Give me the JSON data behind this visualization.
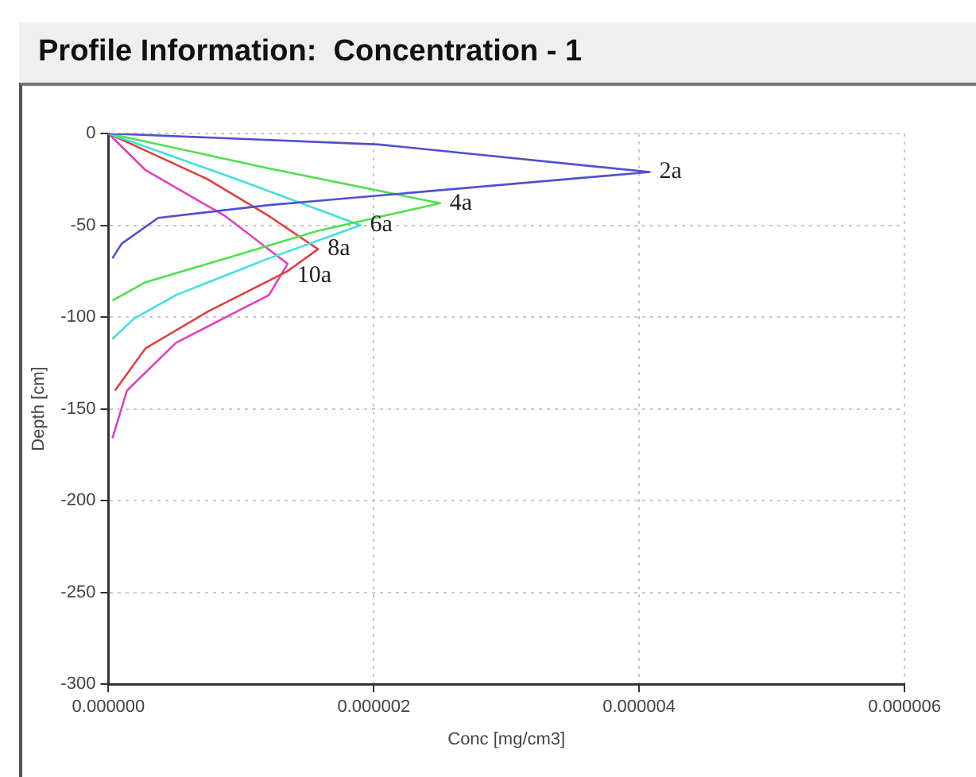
{
  "chart_data": {
    "type": "line",
    "title": "Profile Information:  Concentration - 1",
    "xlabel": "Conc [mg/cm3]",
    "ylabel": "Depth [cm]",
    "xlim": [
      0,
      6e-06
    ],
    "xticks": [
      {
        "value": 0,
        "label": "0.000000"
      },
      {
        "value": 2e-06,
        "label": "0.000002"
      },
      {
        "value": 4e-06,
        "label": "0.000004"
      },
      {
        "value": 6e-06,
        "label": "0.000006"
      }
    ],
    "ylim": [
      -300,
      0
    ],
    "yticks": [
      -300,
      -250,
      -200,
      -150,
      -100,
      -50,
      0
    ],
    "grid": true,
    "legend": false,
    "marker": "none",
    "line_style": "solid",
    "series": [
      {
        "name": "2a",
        "color": "#5050d0",
        "x": [
          0,
          2.04e-06,
          4.08e-06,
          1.21e-06,
          3.75e-07,
          1e-07,
          3e-08
        ],
        "values": [
          0,
          -6,
          -21,
          -39,
          -46,
          -60,
          -68
        ]
      },
      {
        "name": "4a",
        "color": "#50e050",
        "x": [
          0,
          1.21e-06,
          2.5e-06,
          1.58e-06,
          7.5e-07,
          2.8e-07,
          3e-08
        ],
        "values": [
          0,
          -19,
          -38,
          -53,
          -71,
          -81,
          -91
        ]
      },
      {
        "name": "6a",
        "color": "#40e0e0",
        "x": [
          0,
          9.7e-07,
          1.9e-06,
          1.21e-06,
          5.1e-07,
          1.9e-07,
          3e-08
        ],
        "values": [
          0,
          -25,
          -50,
          -68,
          -88,
          -101,
          -112
        ]
      },
      {
        "name": "8a",
        "color": "#e04040",
        "x": [
          0,
          7.5e-07,
          1.21e-06,
          1.58e-06,
          1.35e-06,
          7.5e-07,
          2.8e-07,
          5e-08
        ],
        "values": [
          0,
          -25,
          -45,
          -63,
          -75,
          -97,
          -117,
          -140
        ]
      },
      {
        "name": "10a",
        "color": "#e040c0",
        "x": [
          0,
          2.8e-07,
          8.8e-07,
          1.35e-06,
          1.21e-06,
          5.1e-07,
          1.4e-07,
          3e-08
        ],
        "values": [
          0,
          -20,
          -45,
          -71,
          -88,
          -114,
          -140,
          -166
        ]
      }
    ]
  }
}
